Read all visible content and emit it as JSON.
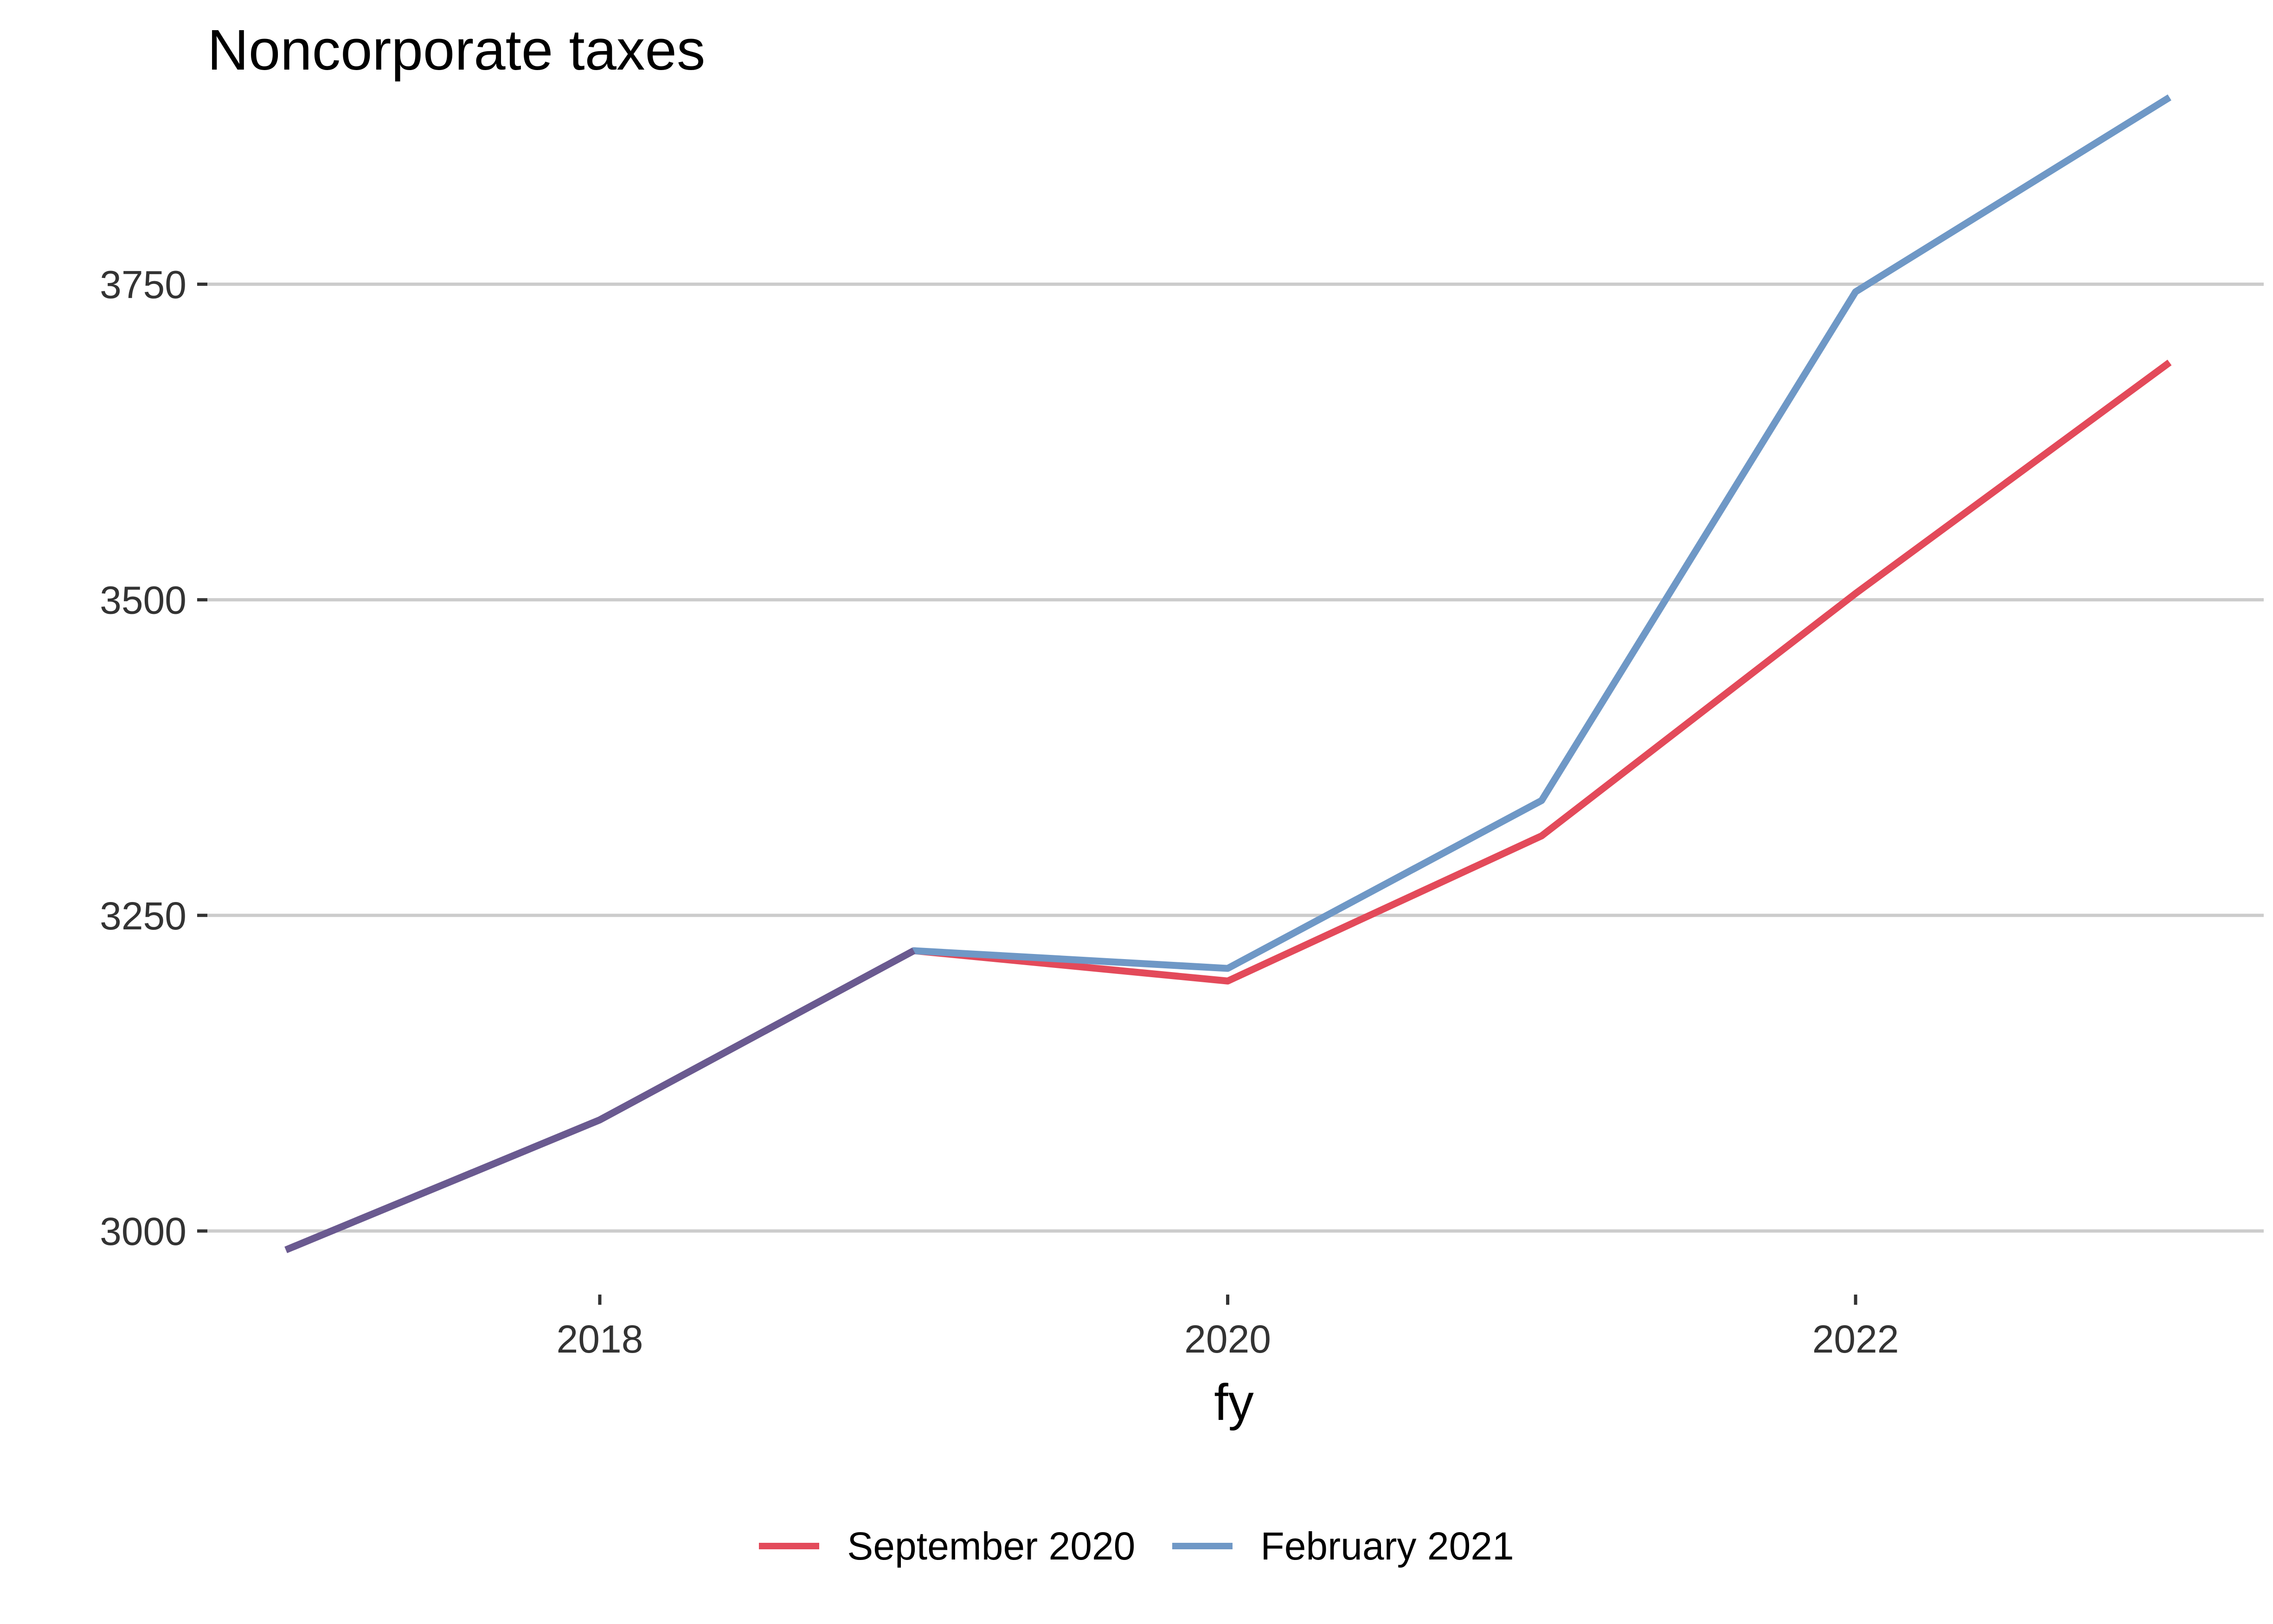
{
  "chart_data": {
    "type": "line",
    "title": "Noncorporate taxes",
    "xlabel": "fy",
    "ylabel": "",
    "x": [
      2017,
      2018,
      2019,
      2020,
      2021,
      2022,
      2023
    ],
    "xlim": [
      2016.75,
      2023.3
    ],
    "ylim": [
      2968,
      3920
    ],
    "xticks": [
      2018,
      2020,
      2022
    ],
    "yticks": [
      3000,
      3250,
      3500,
      3750
    ],
    "grid": "horizontal major",
    "legend_position": "bottom",
    "series": [
      {
        "name": "September 2020",
        "color": "#E34A5A",
        "values": [
          2985,
          3088,
          3222,
          3198,
          3313,
          3505,
          3688
        ]
      },
      {
        "name": "February 2021",
        "color": "#6F98C6",
        "values": [
          2985,
          3088,
          3222,
          3208,
          3341,
          3744,
          3898
        ]
      }
    ],
    "overlap_color": "#6A5A90"
  }
}
